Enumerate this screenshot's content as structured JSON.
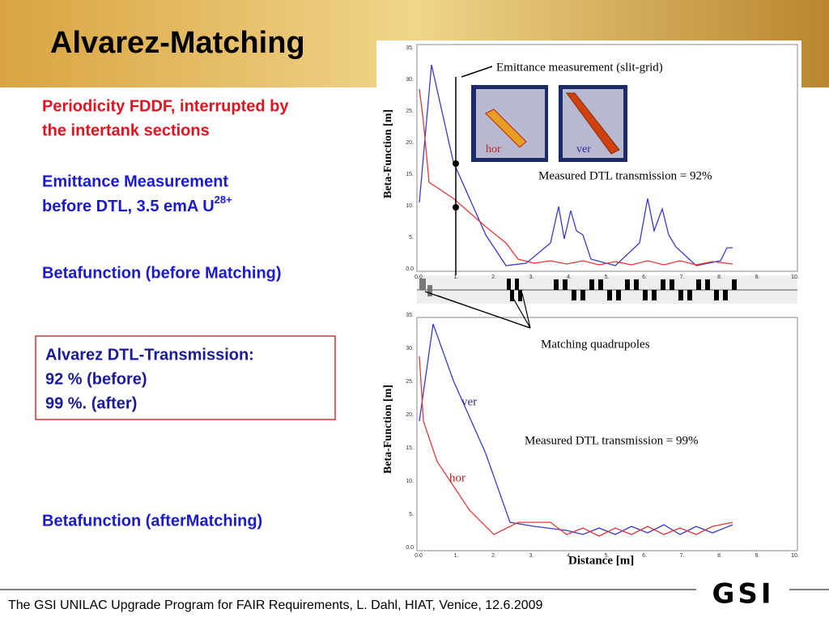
{
  "title": "Alvarez-Matching",
  "text": {
    "periodicity": [
      "Periodicity FDDF, interrupted by",
      "the intertank sections"
    ],
    "emittance": [
      "Emittance Measurement",
      "before DTL, 3.5 emA U"
    ],
    "emittance_sup": "28+",
    "before": "Betafunction (before Matching)",
    "after": "Betafunction (afterMatching)"
  },
  "box": [
    "Alvarez DTL-Transmission:",
    "92 % (before)",
    "99 %. (after)"
  ],
  "figure": {
    "top": {
      "note": "Emittance measurement (slit-grid)",
      "hor": "hor",
      "ver": "ver",
      "ylabel": "Beta-Function [m]",
      "transmission": "Measured DTL transmission = 92%",
      "yticks": [
        "0.0",
        "5.",
        "10.",
        "15.",
        "20.",
        "25.",
        "30.",
        "35."
      ],
      "xticks": [
        "0.0",
        "1.",
        "2.",
        "3.",
        "4.",
        "5.",
        "6.",
        "7.",
        "8.",
        "9.",
        "10."
      ]
    },
    "matching": "Matching quadrupoles",
    "bottom": {
      "ver": "ver",
      "hor": "hor",
      "ylabel": "Beta-Function [m]",
      "transmission": "Measured DTL transmission = 99%",
      "xlabel": "Distance [m]",
      "yticks": [
        "0.0",
        "5.",
        "10.",
        "15.",
        "20.",
        "25.",
        "30.",
        "35."
      ],
      "xticks": [
        "0.0",
        "1.",
        "2.",
        "3.",
        "4.",
        "5.",
        "6.",
        "7.",
        "8.",
        "9.",
        "10."
      ]
    }
  },
  "footer": "The GSI UNILAC Upgrade Program for FAIR Requirements, L. Dahl, HIAT, Venice, 12.6.2009",
  "logo": "GSI"
}
